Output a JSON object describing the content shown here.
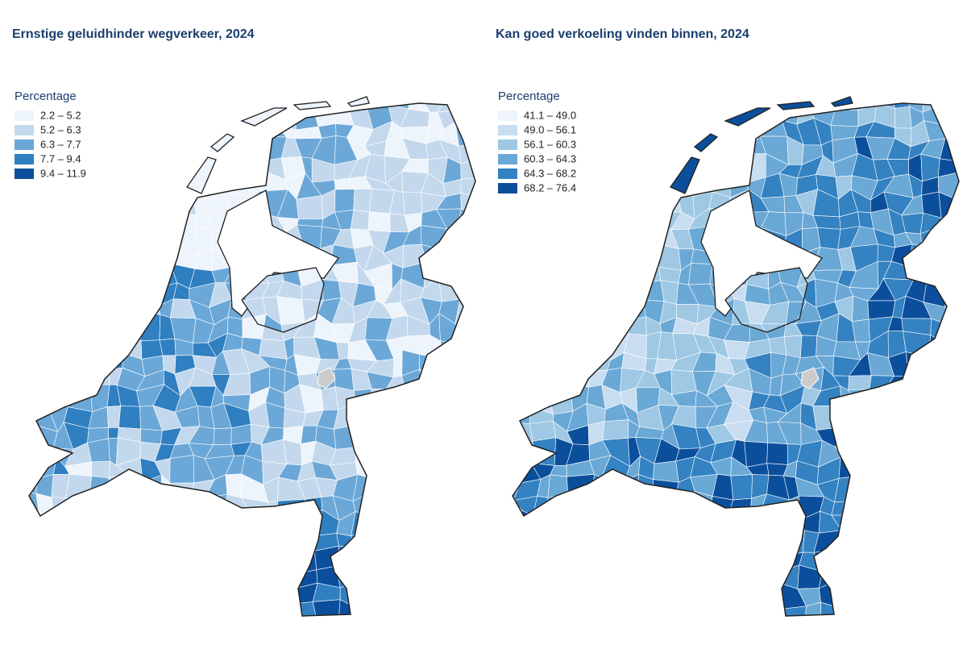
{
  "maps": [
    {
      "title": "Ernstige geluidhinder wegverkeer, 2024",
      "legend": {
        "title": "Percentage",
        "items": [
          {
            "label": "2.2 – 5.2",
            "color": "#eef4fc"
          },
          {
            "label": "5.2 – 6.3",
            "color": "#c3d8ec"
          },
          {
            "label": "6.3 – 7.7",
            "color": "#6ba8d8"
          },
          {
            "label": "7.7 – 9.4",
            "color": "#2f7fc1"
          },
          {
            "label": "9.4 – 11.9",
            "color": "#0b4f9c"
          }
        ]
      }
    },
    {
      "title": "Kan goed verkoeling vinden binnen, 2024",
      "legend": {
        "title": "Percentage",
        "items": [
          {
            "label": "41.1 – 49.0",
            "color": "#eef4fc"
          },
          {
            "label": "49.0 – 56.1",
            "color": "#c9ddf0"
          },
          {
            "label": "56.1 – 60.3",
            "color": "#9ec8e4"
          },
          {
            "label": "60.3 – 64.3",
            "color": "#6aa8d6"
          },
          {
            "label": "64.3 – 68.2",
            "color": "#3482c2"
          },
          {
            "label": "68.2 – 76.4",
            "color": "#0b4f9c"
          }
        ]
      }
    }
  ]
}
